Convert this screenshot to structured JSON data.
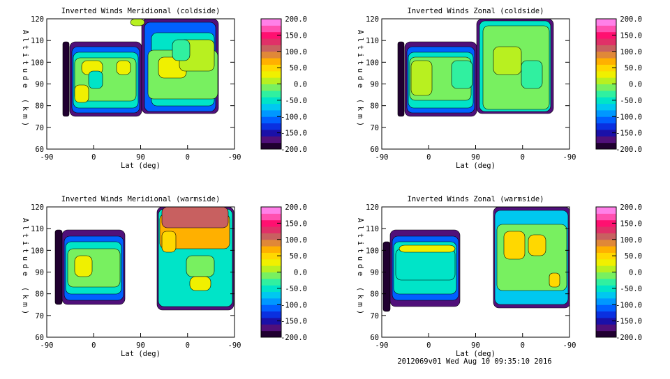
{
  "chart_data": [
    {
      "type": "heatmap",
      "title": "Inverted Winds Meridional (coldside)",
      "xlabel": "Lat (deg)",
      "ylabel": "Altitude (km)",
      "xticks": [
        "-90",
        "0",
        "90",
        "0",
        "-90"
      ],
      "yticks": [
        "60",
        "70",
        "80",
        "90",
        "100",
        "110",
        "120"
      ],
      "ylim": [
        60,
        120
      ]
    },
    {
      "type": "heatmap",
      "title": "Inverted Winds Zonal (coldside)",
      "xlabel": "Lat (deg)",
      "ylabel": "Altitude (km)",
      "xticks": [
        "-90",
        "0",
        "90",
        "0",
        "-90"
      ],
      "yticks": [
        "60",
        "70",
        "80",
        "90",
        "100",
        "110",
        "120"
      ],
      "ylim": [
        60,
        120
      ]
    },
    {
      "type": "heatmap",
      "title": "Inverted Winds Meridional (warmside)",
      "xlabel": "Lat (deg)",
      "ylabel": "Altitude (km)",
      "xticks": [
        "-90",
        "0",
        "90",
        "0",
        "-90"
      ],
      "yticks": [
        "60",
        "70",
        "80",
        "90",
        "100",
        "110",
        "120"
      ],
      "ylim": [
        60,
        120
      ]
    },
    {
      "type": "heatmap",
      "title": "Inverted Winds Zonal (warmside)",
      "xlabel": "Lat (deg)",
      "ylabel": "Altitude (km)",
      "xticks": [
        "-90",
        "0",
        "90",
        "0",
        "-90"
      ],
      "yticks": [
        "60",
        "70",
        "80",
        "90",
        "100",
        "110",
        "120"
      ],
      "ylim": [
        60,
        120
      ]
    }
  ],
  "colorbar": {
    "range": [
      -200,
      200
    ],
    "labels": [
      "200.0",
      "150.0",
      "100.0",
      "50.0",
      "0.0",
      "-50.0",
      "-100.0",
      "-150.0",
      "-200.0"
    ],
    "colors": [
      "#200030",
      "#50107a",
      "#1a10a8",
      "#0a30e0",
      "#0060ff",
      "#0098ff",
      "#00c8f0",
      "#00e4c8",
      "#30f0a0",
      "#78f060",
      "#b8f020",
      "#f0f000",
      "#ffd800",
      "#ffb000",
      "#e08838",
      "#c86060",
      "#e03068",
      "#ff1070",
      "#ff50b0",
      "#ff80e8"
    ]
  },
  "footer": "2012069v01 Wed Aug 10 09:35:10 2016"
}
